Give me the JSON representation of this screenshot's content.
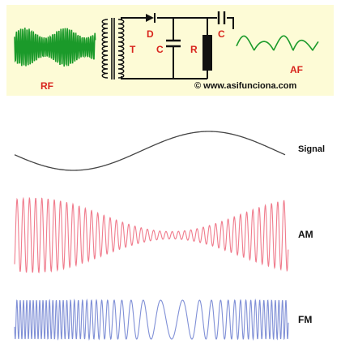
{
  "circuit": {
    "rf_label": "RF",
    "af_label": "AF",
    "transformer_label": "T",
    "diode_label": "D",
    "capacitor_label": "C",
    "resistor_label": "R",
    "coupling_capacitor_label": "C",
    "copyright": "© www.asifunciona.com"
  },
  "waves": {
    "signal_label": "Signal",
    "am_label": "AM",
    "fm_label": "FM"
  },
  "colors": {
    "panel_bg": "#fdfbd6",
    "rf_wave": "#1b9a2a",
    "af_wave": "#1b9a2a",
    "label_red": "#d8241c",
    "signal": "#444444",
    "am_wave": "#f07b8c",
    "fm_wave": "#7f8fd6"
  }
}
